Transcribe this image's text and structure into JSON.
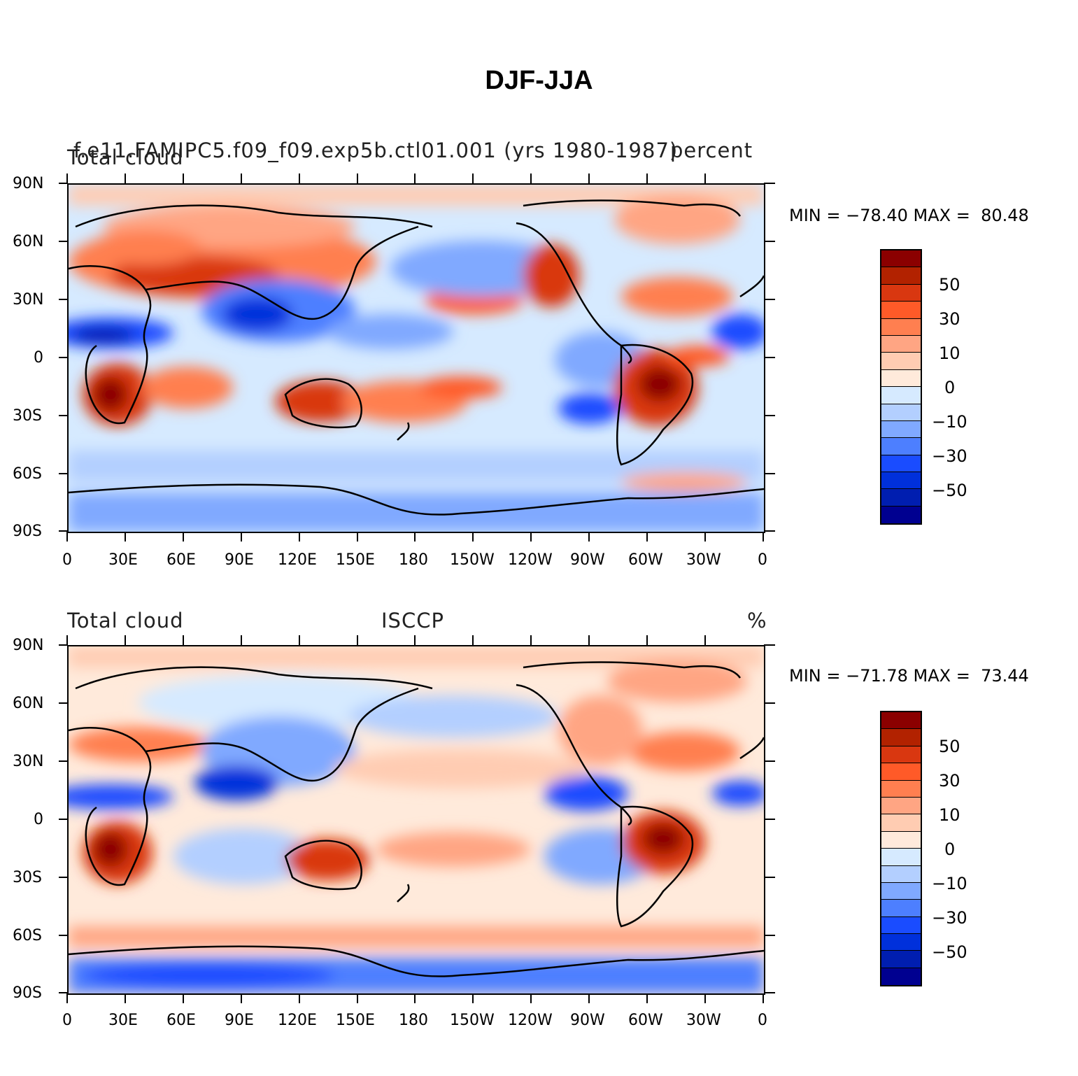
{
  "figure_title": "DJF-JJA",
  "colors": [
    "#8b0000",
    "#b22200",
    "#d93710",
    "#ff5a28",
    "#ff7f50",
    "#ffa583",
    "#ffccb2",
    "#ffeadb",
    "#d6eaff",
    "#b3cfff",
    "#80a9ff",
    "#4d7fff",
    "#1a4cff",
    "#0030db",
    "#001eb0",
    "#000090"
  ],
  "colorbar_labels": [
    "50",
    "30",
    "10",
    "0",
    "−10",
    "−30",
    "−50"
  ],
  "lat_labels": [
    "90N",
    "60N",
    "30N",
    "0",
    "30S",
    "60S",
    "90S"
  ],
  "lon_labels": [
    "0",
    "30E",
    "60E",
    "90E",
    "120E",
    "150E",
    "180",
    "150W",
    "120W",
    "90W",
    "60W",
    "30W",
    "0"
  ],
  "panels": [
    {
      "left_label": "Total cloud",
      "center_label": "f.e11.FAMIPC5.f09_f09.exp5b.ctl01.001 (yrs 1980-1987)",
      "right_label": "percent",
      "minmax": "MIN = −78.40 MAX =  80.48"
    },
    {
      "left_label": "Total cloud",
      "center_label": "ISCCP",
      "right_label": "%",
      "minmax": "MIN = −71.78 MAX =  73.44"
    }
  ]
}
